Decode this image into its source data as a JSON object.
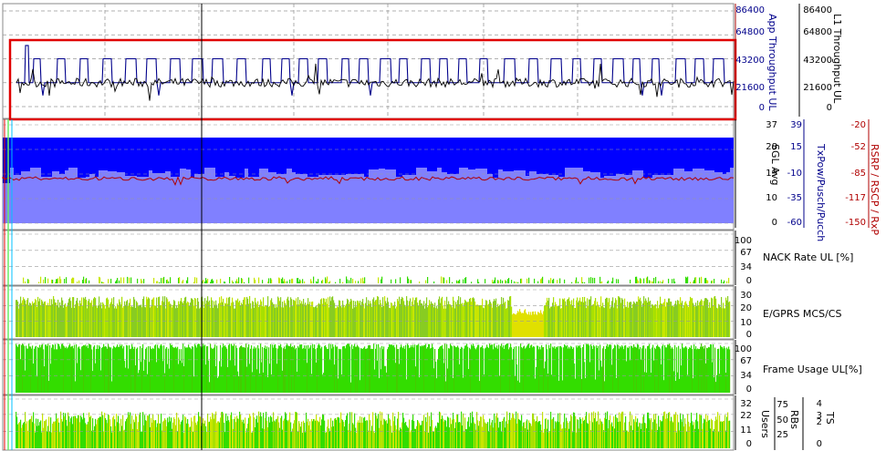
{
  "colors": {
    "navy": "#00008b",
    "darkred": "#b00000",
    "highlight": "#e00000",
    "blue_fill": "#0000ff",
    "lav_fill": "#8080ff",
    "green": "#33dd00",
    "yellow_green": "#c8e600",
    "olive_green": "#88cc22"
  },
  "chart_data": [
    {
      "type": "line",
      "panel": "throughput",
      "axes": [
        {
          "label": "App Throughput UL",
          "ticks": [
            "86400",
            "64800",
            "43200",
            "21600",
            "0"
          ],
          "color": "#00008b"
        },
        {
          "label": "L1 Throughput UL",
          "ticks": [
            "86400",
            "64800",
            "43200",
            "21600",
            "0"
          ],
          "color": "#000000"
        }
      ],
      "ylim": [
        0,
        86400
      ],
      "series": [
        {
          "name": "App Throughput UL",
          "color": "#00008b",
          "base": 21600,
          "peak": 43200,
          "low": 10000,
          "pattern": "square pulses"
        },
        {
          "name": "L1 Throughput UL",
          "color": "#000000",
          "base": 21600,
          "pattern": "noisy around base"
        }
      ],
      "highlight": "red rectangle around series"
    },
    {
      "type": "area",
      "panel": "signal",
      "axes": [
        {
          "label": "SGL Avg",
          "ticks": [
            "37",
            "28",
            "19",
            "10",
            "0"
          ],
          "color": "#000000"
        },
        {
          "label": "TxPow/Pusch/Pucch",
          "ticks": [
            "39",
            "15",
            "-10",
            "-35",
            "-60"
          ],
          "color": "#00008b"
        },
        {
          "label": "RSRP / RSCP / RxP",
          "ticks": [
            "-20",
            "-52",
            "-85",
            "-117",
            "-150"
          ],
          "color": "#b00000"
        }
      ],
      "ylim": [
        0,
        37
      ],
      "series": [
        {
          "name": "SGL Avg",
          "color": "#8080ff",
          "level": 19
        },
        {
          "name": "TxPow/Pusch/Pucch",
          "color": "#0000ff",
          "level_top": 30
        },
        {
          "name": "RSRP / RSCP / RxP",
          "color": "#b00000",
          "level": -85
        }
      ]
    },
    {
      "type": "bar",
      "panel": "nack",
      "axes": [
        {
          "label": "NACK Rate UL [%]",
          "ticks": [
            "100",
            "67",
            "34",
            "0"
          ]
        }
      ],
      "ylim": [
        0,
        100
      ],
      "typical_value": 5
    },
    {
      "type": "bar",
      "panel": "mcs",
      "axes": [
        {
          "label": "E/GPRS MCS/CS",
          "ticks": [
            "30",
            "20",
            "10",
            "0"
          ]
        }
      ],
      "ylim": [
        0,
        30
      ],
      "typical_value": 24
    },
    {
      "type": "bar",
      "panel": "frame",
      "axes": [
        {
          "label": "Frame Usage UL[%]",
          "ticks": [
            "100",
            "67",
            "34",
            "0"
          ]
        }
      ],
      "ylim": [
        0,
        100
      ],
      "typical_value": 100
    },
    {
      "type": "bar",
      "panel": "users",
      "axes": [
        {
          "label": "Users",
          "ticks": [
            "32",
            "22",
            "11",
            "0"
          ]
        },
        {
          "label": "RBs",
          "ticks": [
            "75",
            "50",
            "25"
          ]
        },
        {
          "label": "TS",
          "ticks": [
            "4",
            "3",
            "2",
            "0"
          ]
        }
      ],
      "ylim": [
        0,
        32
      ],
      "typical_value": 22
    }
  ]
}
